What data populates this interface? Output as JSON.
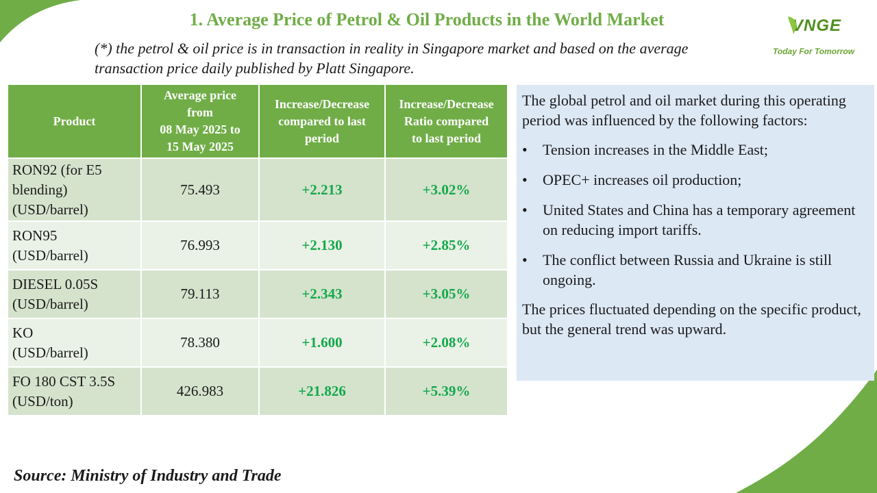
{
  "header": {
    "title": "1. Average Price of Petrol & Oil Products in the World Market",
    "note_line1": "(*) the petrol & oil price is in transaction in reality in Singapore market and based on the average",
    "note_line2": "transaction price daily published by Platt Singapore."
  },
  "logo": {
    "mark": "VNGE",
    "tagline": "Today For Tomorrow"
  },
  "table": {
    "headers": {
      "product": "Product",
      "avg": [
        "Average price",
        "from",
        "08 May 2025 to",
        "15 May 2025"
      ],
      "change": [
        "Increase/Decrease",
        "compared to last",
        "period"
      ],
      "ratio": [
        "Increase/Decrease",
        "Ratio compared",
        "to last period"
      ]
    },
    "rows": [
      {
        "product": [
          "RON92 (for E5",
          "blending)",
          "(USD/barrel)"
        ],
        "avg": "75.493",
        "change": "+2.213",
        "ratio": "+3.02%"
      },
      {
        "product": [
          "RON95",
          "(USD/barrel)"
        ],
        "avg": "76.993",
        "change": "+2.130",
        "ratio": "+2.85%"
      },
      {
        "product": [
          "DIESEL 0.05S",
          "(USD/barrel)"
        ],
        "avg": "79.113",
        "change": "+2.343",
        "ratio": "+3.05%"
      },
      {
        "product": [
          "KO",
          "(USD/barrel)"
        ],
        "avg": "78.380",
        "change": "+1.600",
        "ratio": "+2.08%"
      },
      {
        "product": [
          "FO 180 CST 3.5S",
          "(USD/ton)"
        ],
        "avg": "426.983",
        "change": "+21.826",
        "ratio": "+5.39%"
      }
    ]
  },
  "panel": {
    "intro": "The global petrol and oil market during this operating period was influenced by the following factors:",
    "bullet_char": "•",
    "bullets": [
      "Tension increases in the Middle East;",
      "OPEC+ increases oil production;",
      "United States and China has a temporary agreement on reducing import tariffs.",
      "The conflict between Russia and Ukraine is still ongoing."
    ],
    "outro": "The prices fluctuated depending on the specific product, but the general trend was upward."
  },
  "footer": {
    "source": "Source: Ministry of Industry and Trade"
  },
  "colors": {
    "accent_green": "#70ad47",
    "positive_green": "#13a84b",
    "row_dark": "#d5e3cd",
    "row_light": "#eaf1e6",
    "panel_bg": "#dde8f5"
  }
}
